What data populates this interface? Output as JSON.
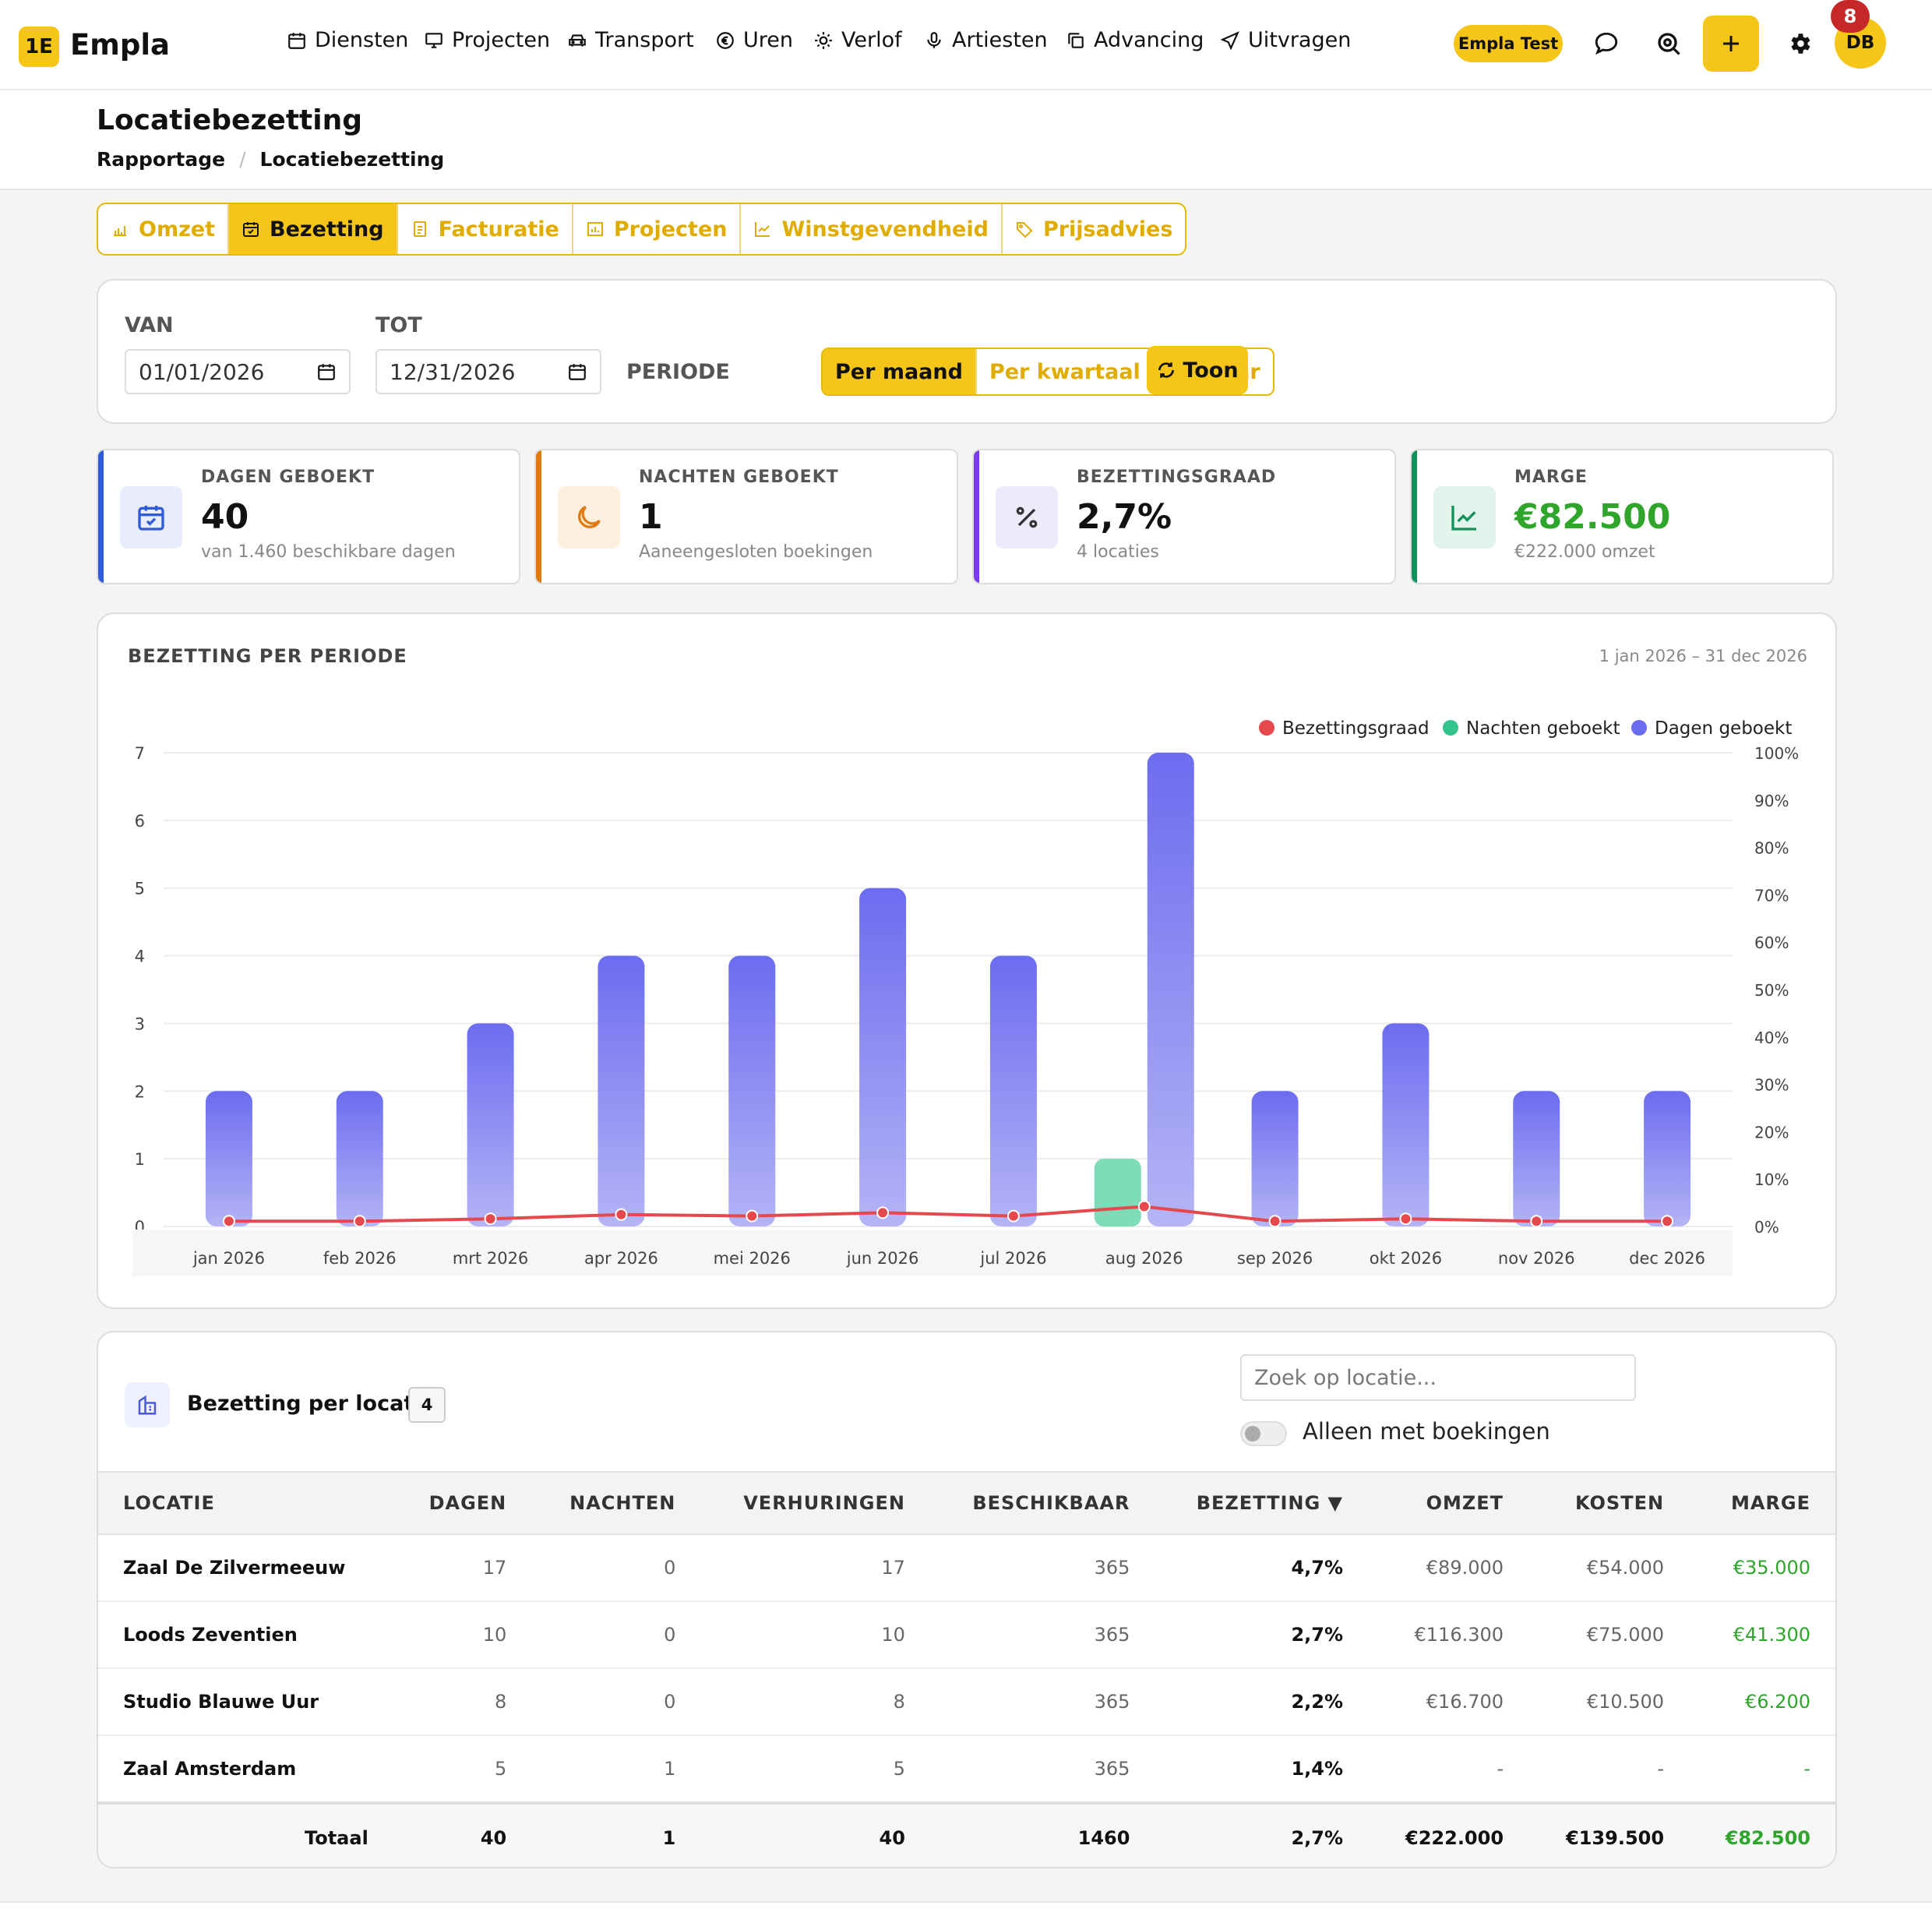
{
  "app": {
    "logo_badge": "1E",
    "name": "Empla"
  },
  "nav": [
    {
      "label": "Diensten",
      "icon": "calendar-icon"
    },
    {
      "label": "Projecten",
      "icon": "monitor-icon"
    },
    {
      "label": "Transport",
      "icon": "car-icon"
    },
    {
      "label": "Uren",
      "icon": "euro-icon"
    },
    {
      "label": "Verlof",
      "icon": "sun-icon"
    },
    {
      "label": "Artiesten",
      "icon": "microphone-icon"
    },
    {
      "label": "Advancing",
      "icon": "copy-icon"
    },
    {
      "label": "Uitvragen",
      "icon": "send-icon"
    }
  ],
  "topright": {
    "account_label": "Empla Test",
    "avatar": "DB",
    "notifications": "8"
  },
  "header": {
    "title": "Locatiebezetting",
    "breadcrumb": [
      "Rapportage",
      "Locatiebezetting"
    ]
  },
  "tabs": [
    {
      "label": "Omzet",
      "icon": "bar-chart-icon",
      "active": false
    },
    {
      "label": "Bezetting",
      "icon": "calendar-check-icon",
      "active": true
    },
    {
      "label": "Facturatie",
      "icon": "document-icon",
      "active": false
    },
    {
      "label": "Projecten",
      "icon": "building-chart-icon",
      "active": false
    },
    {
      "label": "Winstgevendheid",
      "icon": "line-chart-icon",
      "active": false
    },
    {
      "label": "Prijsadvies",
      "icon": "tag-icon",
      "active": false
    }
  ],
  "filters": {
    "van_label": "VAN",
    "van_value": "01/01/2026",
    "tot_label": "TOT",
    "tot_value": "12/31/2026",
    "periode_label": "PERIODE",
    "periode_options": [
      "Per maand",
      "Per kwartaal",
      "Per jaar"
    ],
    "periode_selected": "Per maand",
    "submit_label": "Toon"
  },
  "stats": [
    {
      "label": "DAGEN GEBOEKT",
      "value": "40",
      "sub": "van 1.460 beschikbare dagen",
      "accent": "#2f5bd8",
      "icon": "calendar-check-icon"
    },
    {
      "label": "NACHTEN GEBOEKT",
      "value": "1",
      "sub": "Aaneengesloten boekingen",
      "accent": "#e07b12",
      "icon": "moon-icon"
    },
    {
      "label": "BEZETTINGSGRAAD",
      "value": "2,7%",
      "sub": "4 locaties",
      "accent": "#7c3aed",
      "icon": "percent-icon"
    },
    {
      "label": "MARGE",
      "value": "€82.500",
      "sub": "€222.000 omzet",
      "accent": "#14915a",
      "value_color": "#2fa52c",
      "icon": "trend-icon"
    }
  ],
  "chart_title": "BEZETTING PER PERIODE",
  "chart_range": "1 jan 2026 – 31 dec 2026",
  "chart_data": {
    "type": "bar",
    "categories": [
      "jan 2026",
      "feb 2026",
      "mrt 2026",
      "apr 2026",
      "mei 2026",
      "jun 2026",
      "jul 2026",
      "aug 2026",
      "sep 2026",
      "okt 2026",
      "nov 2026",
      "dec 2026"
    ],
    "series": [
      {
        "name": "Bezettingsgraad",
        "type": "line",
        "axis": "right",
        "color": "#e5484d",
        "values": [
          1.1,
          1.1,
          1.6,
          2.5,
          2.2,
          2.9,
          2.2,
          4.2,
          1.1,
          1.6,
          1.1,
          1.1
        ]
      },
      {
        "name": "Nachten geboekt",
        "type": "bar",
        "axis": "left",
        "color": "#34c38f",
        "values": [
          0,
          0,
          0,
          0,
          0,
          0,
          0,
          1,
          0,
          0,
          0,
          0
        ]
      },
      {
        "name": "Dagen geboekt",
        "type": "bar",
        "axis": "left",
        "color": "#6c6cf0",
        "values": [
          2,
          2,
          3,
          4,
          4,
          5,
          4,
          7,
          2,
          3,
          2,
          2
        ]
      }
    ],
    "y_left": {
      "ticks": [
        "0",
        "1",
        "2",
        "3",
        "4",
        "5",
        "6",
        "7"
      ],
      "lim": [
        0,
        7
      ]
    },
    "y_right": {
      "ticks": [
        "0%",
        "10%",
        "20%",
        "30%",
        "40%",
        "50%",
        "60%",
        "70%",
        "80%",
        "90%",
        "100%"
      ],
      "lim": [
        0,
        100
      ]
    },
    "grid": true,
    "legend_position": "top-right"
  },
  "table": {
    "title": "Bezetting per locatie",
    "count": "4",
    "search_placeholder": "Zoek op locatie...",
    "toggle_label": "Alleen met boekingen",
    "toggle_on": false,
    "columns": [
      "LOCATIE",
      "DAGEN",
      "NACHTEN",
      "VERHURINGEN",
      "BESCHIKBAAR",
      "BEZETTING ▼",
      "OMZET",
      "KOSTEN",
      "MARGE"
    ],
    "rows": [
      [
        "Zaal De Zilvermeeuw",
        "17",
        "0",
        "17",
        "365",
        "4,7%",
        "€89.000",
        "€54.000",
        "€35.000"
      ],
      [
        "Loods Zeventien",
        "10",
        "0",
        "10",
        "365",
        "2,7%",
        "€116.300",
        "€75.000",
        "€41.300"
      ],
      [
        "Studio Blauwe Uur",
        "8",
        "0",
        "8",
        "365",
        "2,2%",
        "€16.700",
        "€10.500",
        "€6.200"
      ],
      [
        "Zaal Amsterdam",
        "5",
        "1",
        "5",
        "365",
        "1,4%",
        "-",
        "-",
        "-"
      ]
    ],
    "totals": [
      "Totaal",
      "40",
      "1",
      "40",
      "1460",
      "2,7%",
      "€222.000",
      "€139.500",
      "€82.500"
    ]
  }
}
